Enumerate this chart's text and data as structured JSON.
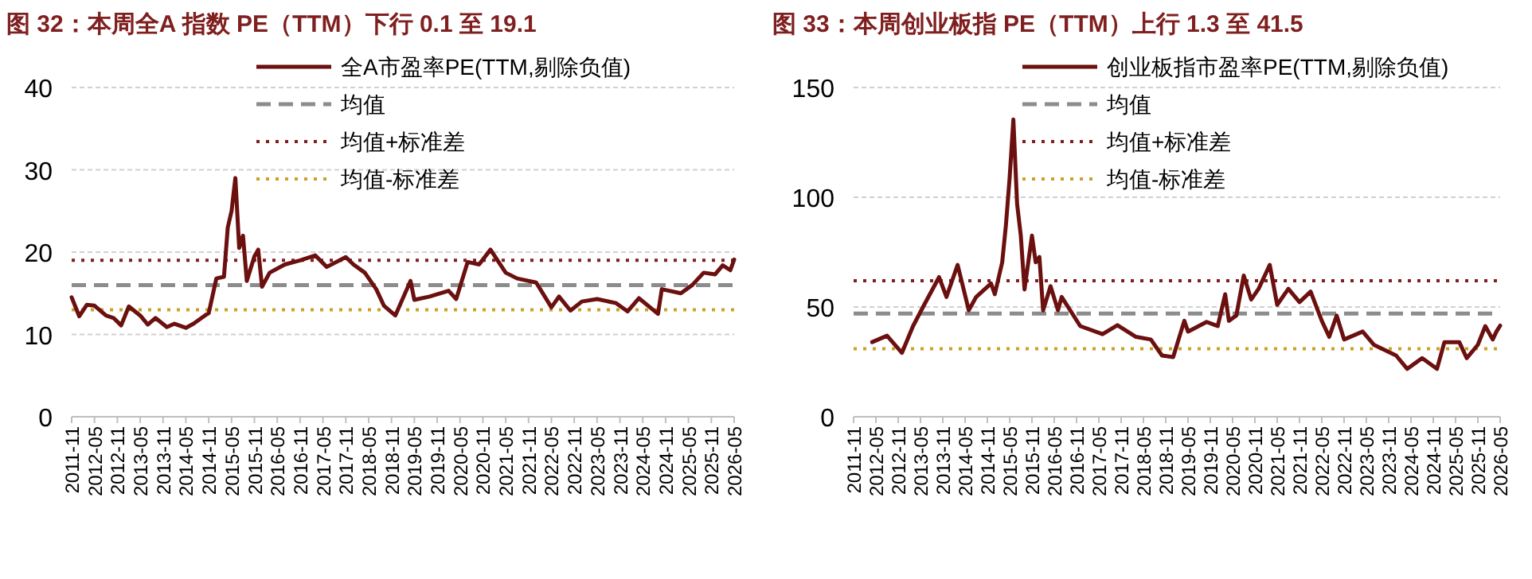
{
  "chart_data": [
    {
      "type": "line",
      "title": "**图 32：本周全A 指数 PE（TTM）下行 0.1 至 19.1**",
      "legend": "top right",
      "grid": "y",
      "line_style": "solid",
      "x": [
        "2011-11",
        "2012-01",
        "2012-03",
        "2012-05",
        "2012-08",
        "2012-10",
        "2012-12",
        "2013-02",
        "2013-05",
        "2013-07",
        "2013-09",
        "2013-12",
        "2014-02",
        "2014-05",
        "2014-07",
        "2014-10",
        "2014-11",
        "2015-01",
        "2015-03",
        "2015-04",
        "2015-05",
        "2015-06",
        "2015-07",
        "2015-08",
        "2015-09",
        "2015-11",
        "2015-12",
        "2016-01",
        "2016-03",
        "2016-07",
        "2016-11",
        "2017-03",
        "2017-06",
        "2017-11",
        "2018-01",
        "2018-04",
        "2018-07",
        "2018-09",
        "2018-12",
        "2019-04",
        "2019-05",
        "2019-09",
        "2020-02",
        "2020-04",
        "2020-07",
        "2020-10",
        "2021-01",
        "2021-05",
        "2021-08",
        "2022-01",
        "2022-05",
        "2022-07",
        "2022-10",
        "2023-01",
        "2023-05",
        "2023-10",
        "2024-01",
        "2024-04",
        "2024-09",
        "2024-10",
        "2025-03",
        "2025-06",
        "2025-09",
        "2025-12",
        "2026-02",
        "2026-04",
        "2026-05"
      ],
      "series": [
        {
          "name": "全A市盈率PE(TTM,剔除负值)",
          "color": "#6b0f0f",
          "values": [
            14.5,
            12.2,
            13.6,
            13.5,
            12.3,
            12.0,
            11.1,
            13.4,
            12.3,
            11.2,
            12.0,
            10.9,
            11.3,
            10.8,
            11.3,
            12.3,
            12.6,
            16.8,
            17.0,
            23.0,
            25.0,
            29.0,
            20.5,
            22.0,
            16.5,
            19.5,
            20.3,
            15.8,
            17.5,
            18.5,
            19.0,
            19.6,
            18.2,
            19.4,
            18.5,
            17.5,
            15.5,
            13.5,
            12.3,
            16.5,
            14.2,
            14.6,
            15.3,
            14.3,
            18.8,
            18.5,
            20.3,
            17.5,
            16.8,
            16.3,
            13.3,
            14.6,
            12.9,
            14.0,
            14.3,
            13.8,
            12.8,
            14.4,
            12.5,
            15.5,
            15.0,
            16.0,
            17.5,
            17.3,
            18.4,
            17.8,
            19.1
          ]
        }
      ],
      "xlim": [
        "2011-11",
        "2026-05"
      ],
      "xticks": [
        "2011-11",
        "2012-05",
        "2012-11",
        "2013-05",
        "2013-11",
        "2014-05",
        "2014-11",
        "2015-05",
        "2015-11",
        "2016-05",
        "2016-11",
        "2017-05",
        "2017-11",
        "2018-05",
        "2018-11",
        "2019-05",
        "2019-11",
        "2020-05",
        "2020-11",
        "2021-05",
        "2021-11",
        "2022-05",
        "2022-11",
        "2023-05",
        "2023-11",
        "2024-05",
        "2024-11",
        "2025-05",
        "2025-11",
        "2026-05"
      ],
      "ylim": [
        0,
        40
      ],
      "yticks": [
        0,
        10,
        20,
        30,
        40
      ],
      "ref_lines": [
        {
          "axis": "y",
          "value": 16,
          "label": "均值",
          "color": "#8c8c8c",
          "line_style": "dashed"
        },
        {
          "axis": "y",
          "value": 19,
          "label": "均值+标准差",
          "color": "#7f1f1f",
          "line_style": "dotted"
        },
        {
          "axis": "y",
          "value": 13,
          "label": "均值-标准差",
          "color": "#c9a227",
          "line_style": "dotted"
        }
      ]
    },
    {
      "type": "line",
      "title": "**图 33：本周创业板指 PE（TTM）上行 1.3 至 41.5**",
      "legend": "top right",
      "grid": "y",
      "line_style": "solid",
      "x": [
        "2012-04",
        "2012-08",
        "2012-12",
        "2013-03",
        "2013-06",
        "2013-10",
        "2013-12",
        "2014-03",
        "2014-06",
        "2014-08",
        "2014-12",
        "2015-01",
        "2015-03",
        "2015-04",
        "2015-05",
        "2015-06",
        "2015-07",
        "2015-08",
        "2015-09",
        "2015-11",
        "2015-12",
        "2016-01",
        "2016-02",
        "2016-04",
        "2016-06",
        "2016-07",
        "2016-12",
        "2017-06",
        "2017-10",
        "2018-03",
        "2018-07",
        "2018-10",
        "2019-01",
        "2019-04",
        "2019-05",
        "2019-10",
        "2020-01",
        "2020-03",
        "2020-04",
        "2020-06",
        "2020-08",
        "2020-10",
        "2020-12",
        "2021-03",
        "2021-05",
        "2021-08",
        "2021-11",
        "2022-02",
        "2022-05",
        "2022-07",
        "2022-09",
        "2022-11",
        "2023-04",
        "2023-07",
        "2024-01",
        "2024-04",
        "2024-08",
        "2024-12",
        "2025-02",
        "2025-06",
        "2025-08",
        "2025-11",
        "2026-01",
        "2026-03",
        "2026-04",
        "2026-05"
      ],
      "series": [
        {
          "name": "创业板指市盈率PE(TTM,剔除负值)",
          "color": "#6b0f0f",
          "values": [
            34,
            36.9,
            29.1,
            41.3,
            51,
            63.6,
            54.6,
            69.2,
            48.5,
            54.6,
            60.7,
            55.8,
            70.4,
            87.4,
            109,
            135.4,
            97,
            82.5,
            58,
            82.5,
            70.4,
            72.8,
            48.5,
            59.5,
            48.5,
            54.6,
            41.3,
            37.6,
            41.7,
            36.4,
            35.2,
            27.9,
            27.2,
            43.7,
            38.8,
            43.2,
            41.3,
            55.8,
            43.7,
            46.1,
            64.3,
            53.4,
            58.3,
            69.2,
            51,
            58.3,
            52.2,
            57,
            43.7,
            36.4,
            46.1,
            35.2,
            38.8,
            32.8,
            27.9,
            21.8,
            26.7,
            21.8,
            34,
            34,
            26.7,
            32.8,
            41.3,
            35.2,
            38.8,
            41.5
          ]
        }
      ],
      "xlim": [
        "2011-11",
        "2026-05"
      ],
      "xticks": [
        "2011-11",
        "2012-05",
        "2012-11",
        "2013-05",
        "2013-11",
        "2014-05",
        "2014-11",
        "2015-05",
        "2015-11",
        "2016-05",
        "2016-11",
        "2017-05",
        "2017-11",
        "2018-05",
        "2018-11",
        "2019-05",
        "2019-11",
        "2020-05",
        "2020-11",
        "2021-05",
        "2021-11",
        "2022-05",
        "2022-11",
        "2023-05",
        "2023-11",
        "2024-05",
        "2024-11",
        "2025-05",
        "2025-11",
        "2026-05"
      ],
      "ylim": [
        0,
        150
      ],
      "yticks": [
        0,
        50,
        100,
        150
      ],
      "ref_lines": [
        {
          "axis": "y",
          "value": 47,
          "label": "均值",
          "color": "#8c8c8c",
          "line_style": "dashed"
        },
        {
          "axis": "y",
          "value": 62,
          "label": "均值+标准差",
          "color": "#7f1f1f",
          "line_style": "dotted"
        },
        {
          "axis": "y",
          "value": 31,
          "label": "均值-标准差",
          "color": "#c9a227",
          "line_style": "dotted"
        }
      ]
    }
  ]
}
